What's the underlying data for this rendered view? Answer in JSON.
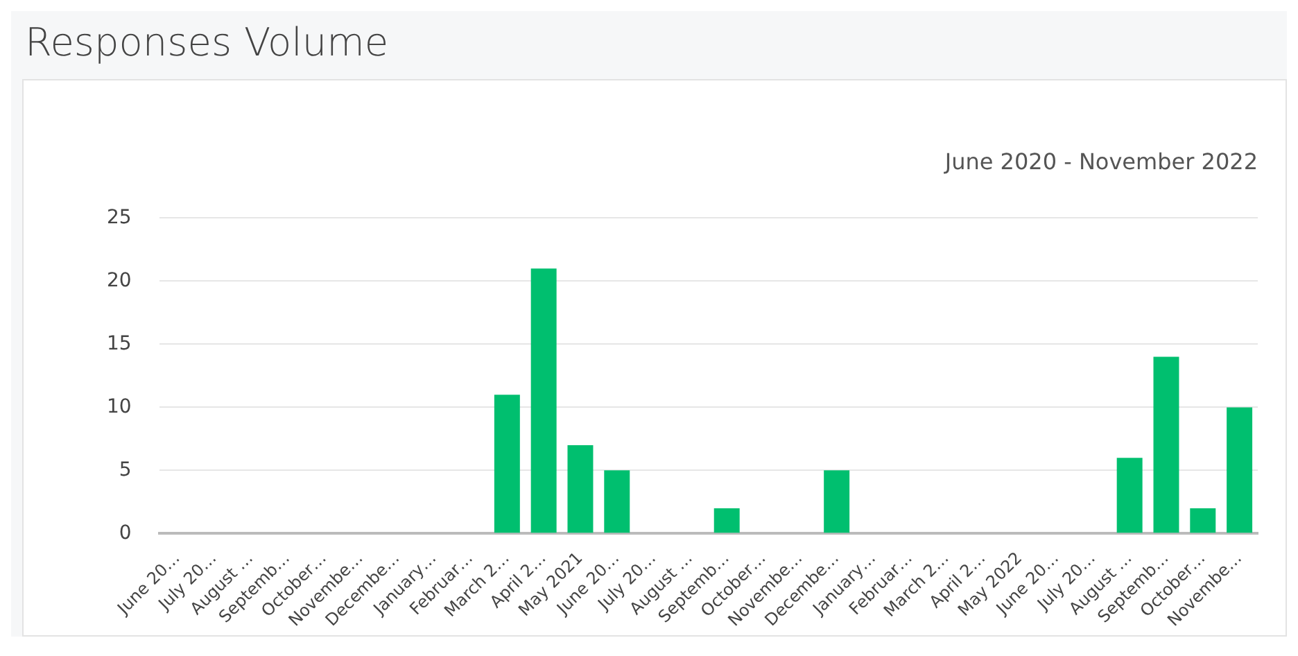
{
  "chart_data": {
    "type": "bar",
    "title": "Responses Volume",
    "subtitle": "June 2020 - November 2022",
    "categories": [
      "June 20…",
      "July 20…",
      "August …",
      "Septemb…",
      "October…",
      "Novembe…",
      "Decembe…",
      "January…",
      "Februar…",
      "March 2…",
      "April 2…",
      "May 2021",
      "June 20…",
      "July 20…",
      "August …",
      "Septemb…",
      "October…",
      "Novembe…",
      "Decembe…",
      "January…",
      "Februar…",
      "March 2…",
      "April 2…",
      "May 2022",
      "June 20…",
      "July 20…",
      "August …",
      "Septemb…",
      "October…",
      "Novembe…"
    ],
    "values": [
      0,
      0,
      0,
      0,
      0,
      0,
      0,
      0,
      0,
      11,
      21,
      7,
      5,
      0,
      0,
      2,
      0,
      0,
      5,
      0,
      0,
      0,
      0,
      0,
      0,
      0,
      6,
      14,
      2,
      10
    ],
    "color": "#00bf6f",
    "ylim": [
      0,
      25
    ],
    "yticks": [
      0,
      5,
      10,
      15,
      20,
      25
    ],
    "grid": "y",
    "legend": false
  }
}
